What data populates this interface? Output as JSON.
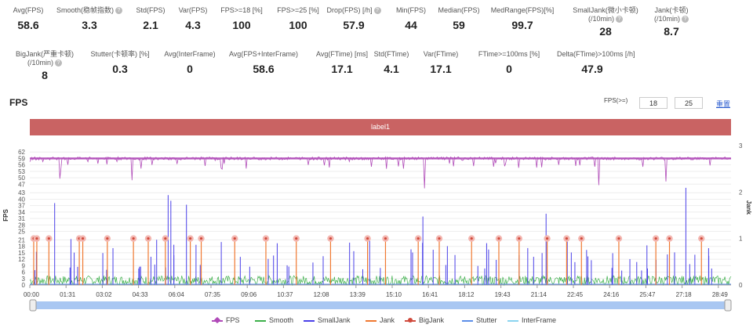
{
  "metrics_row1": [
    {
      "label": "Avg(FPS)",
      "value": "58.6",
      "help": false
    },
    {
      "label": "Smooth(稳帧指数)",
      "value": "3.3",
      "help": true
    },
    {
      "label": "Std(FPS)",
      "value": "2.1",
      "help": false
    },
    {
      "label": "Var(FPS)",
      "value": "4.3",
      "help": false
    },
    {
      "label": "FPS>=18 [%]",
      "value": "100",
      "help": false
    },
    {
      "label": "FPS>=25 [%]",
      "value": "100",
      "help": false
    },
    {
      "label": "Drop(FPS) [/h]",
      "value": "57.9",
      "help": true
    },
    {
      "label": "Min(FPS)",
      "value": "44",
      "help": false
    },
    {
      "label": "Median(FPS)",
      "value": "59",
      "help": false
    },
    {
      "label": "MedRange(FPS)[%]",
      "value": "99.7",
      "help": false
    },
    {
      "label": "SmallJank(微小卡顿)",
      "label2": "(/10min)",
      "value": "28",
      "help": true
    },
    {
      "label": "Jank(卡顿)",
      "label2": "(/10min)",
      "value": "8.7",
      "help": true
    }
  ],
  "metrics_row2": [
    {
      "label": "BigJank(严重卡顿)",
      "label2": "(/10min)",
      "value": "8",
      "help": true
    },
    {
      "label": "Stutter(卡顿率) [%]",
      "value": "0.3",
      "help": false
    },
    {
      "label": "Avg(InterFrame)",
      "value": "0",
      "help": false
    },
    {
      "label": "Avg(FPS+InterFrame)",
      "value": "58.6",
      "help": false
    },
    {
      "label": "Avg(FTime) [ms]",
      "value": "17.1",
      "help": false
    },
    {
      "label": "Std(FTime)",
      "value": "4.1",
      "help": false
    },
    {
      "label": "Var(FTime)",
      "value": "17.1",
      "help": false
    },
    {
      "label": "FTime>=100ms [%]",
      "value": "0",
      "help": false
    },
    {
      "label": "Delta(FTime)>100ms [/h]",
      "value": "47.9",
      "help": false
    }
  ],
  "fps_section": {
    "title": "FPS",
    "filter_label": "FPS(>=)",
    "threshold1": "18",
    "threshold2": "25",
    "reset_label": "重置",
    "band_label": "label1"
  },
  "chart_data": {
    "type": "line",
    "y_left_label": "FPS",
    "y_right_label": "Jank",
    "y_left_ticks": [
      "0",
      "3",
      "6",
      "9",
      "12",
      "15",
      "18",
      "21",
      "25",
      "28",
      "31",
      "34",
      "37",
      "40",
      "43",
      "47",
      "50",
      "53",
      "56",
      "59",
      "62"
    ],
    "y_right_ticks": [
      "0",
      "1",
      "2",
      "3"
    ],
    "x_ticks": [
      "00:00",
      "01:31",
      "03:02",
      "04:33",
      "06:04",
      "07:35",
      "09:06",
      "10:37",
      "12:08",
      "13:39",
      "15:10",
      "16:41",
      "18:12",
      "19:43",
      "21:14",
      "22:45",
      "24:16",
      "25:47",
      "27:18",
      "28:49"
    ],
    "fps_typical": 59,
    "fps_min": 44,
    "bigjank_times": [
      "00:10",
      "00:18",
      "00:49",
      "02:07",
      "02:16",
      "03:19",
      "04:26",
      "05:04",
      "05:48",
      "06:52",
      "07:20",
      "08:46",
      "10:06",
      "11:24",
      "12:52",
      "14:27",
      "15:13",
      "16:37",
      "17:31",
      "18:54",
      "20:04",
      "20:56",
      "22:08",
      "22:58",
      "23:36",
      "25:12",
      "26:47",
      "27:22",
      "28:44"
    ],
    "bigjank_level": 1,
    "smalljank_level_range": [
      0,
      2.1
    ],
    "smooth_level_range": [
      0,
      0.2
    ],
    "stutter_level": 0,
    "colors": {
      "fps": "#b04ab8",
      "smooth": "#3cb04a",
      "smalljank": "#4a40e8",
      "jank": "#f07830",
      "bigjank": "#d04a3c",
      "stutter": "#5b8ee8",
      "interframe": "#8ad4f0",
      "label_band": "#c96363"
    },
    "legend": [
      {
        "name": "FPS",
        "color": "#b04ab8",
        "marker": "diamond"
      },
      {
        "name": "Smooth",
        "color": "#3cb04a",
        "marker": "line"
      },
      {
        "name": "SmallJank",
        "color": "#4a40e8",
        "marker": "line"
      },
      {
        "name": "Jank",
        "color": "#f07830",
        "marker": "line"
      },
      {
        "name": "BigJank",
        "color": "#d04a3c",
        "marker": "circle"
      },
      {
        "name": "Stutter",
        "color": "#5b8ee8",
        "marker": "line"
      },
      {
        "name": "InterFrame",
        "color": "#8ad4f0",
        "marker": "line"
      }
    ]
  }
}
